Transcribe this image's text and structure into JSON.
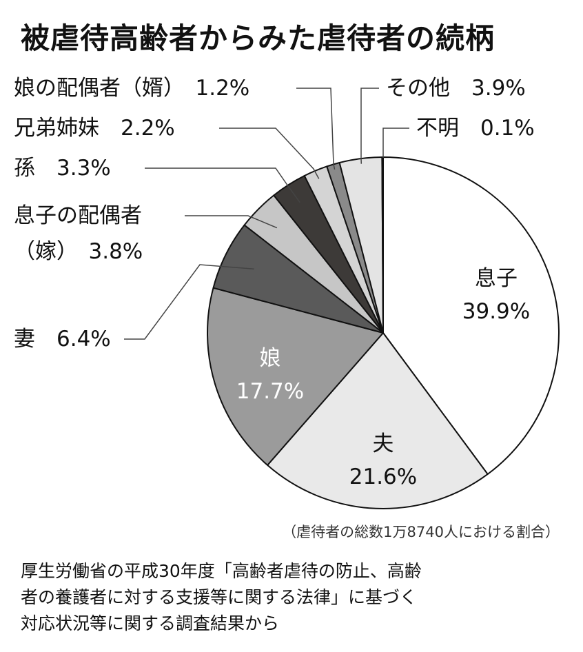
{
  "title": "被虐待高齢者からみた虐待者の続柄",
  "chart_data": {
    "type": "pie",
    "title": "被虐待高齢者からみた虐待者の続柄",
    "unit": "%",
    "slices": [
      {
        "name": "息子",
        "value": 39.9,
        "color": "#ffffff",
        "label_style": "inside",
        "text_color": "#111111"
      },
      {
        "name": "夫",
        "value": 21.6,
        "color": "#e9e9e9",
        "label_style": "inside",
        "text_color": "#111111"
      },
      {
        "name": "娘",
        "value": 17.7,
        "color": "#9b9b9b",
        "label_style": "inside",
        "text_color": "#ffffff"
      },
      {
        "name": "妻",
        "value": 6.4,
        "color": "#5a5a5a",
        "label_style": "outside"
      },
      {
        "name": "息子の配偶者（嫁）",
        "label_lines": [
          "息子の配偶者",
          "（嫁）"
        ],
        "value": 3.8,
        "color": "#c6c6c6",
        "label_style": "outside"
      },
      {
        "name": "孫",
        "value": 3.3,
        "color": "#3d3a38",
        "label_style": "outside"
      },
      {
        "name": "兄弟姉妹",
        "value": 2.2,
        "color": "#d4d4d4",
        "label_style": "outside"
      },
      {
        "name": "娘の配偶者（婿）",
        "value": 1.2,
        "color": "#8a8a8a",
        "label_style": "outside"
      },
      {
        "name": "その他",
        "value": 3.9,
        "color": "#e4e4e4",
        "label_style": "outside"
      },
      {
        "name": "不明",
        "value": 0.1,
        "color": "#222222",
        "label_style": "outside"
      }
    ],
    "start": "12 o'clock",
    "direction": "clockwise",
    "legend": "none"
  },
  "note": "（虐待者の総数1万8740人における割合）",
  "source_lines": [
    "厚生労働省の平成30年度「高齢者虐待の防止、高齢",
    "者の養護者に対する支援等に関する法律」に基づく",
    "対応状況等に関する調査結果から"
  ]
}
